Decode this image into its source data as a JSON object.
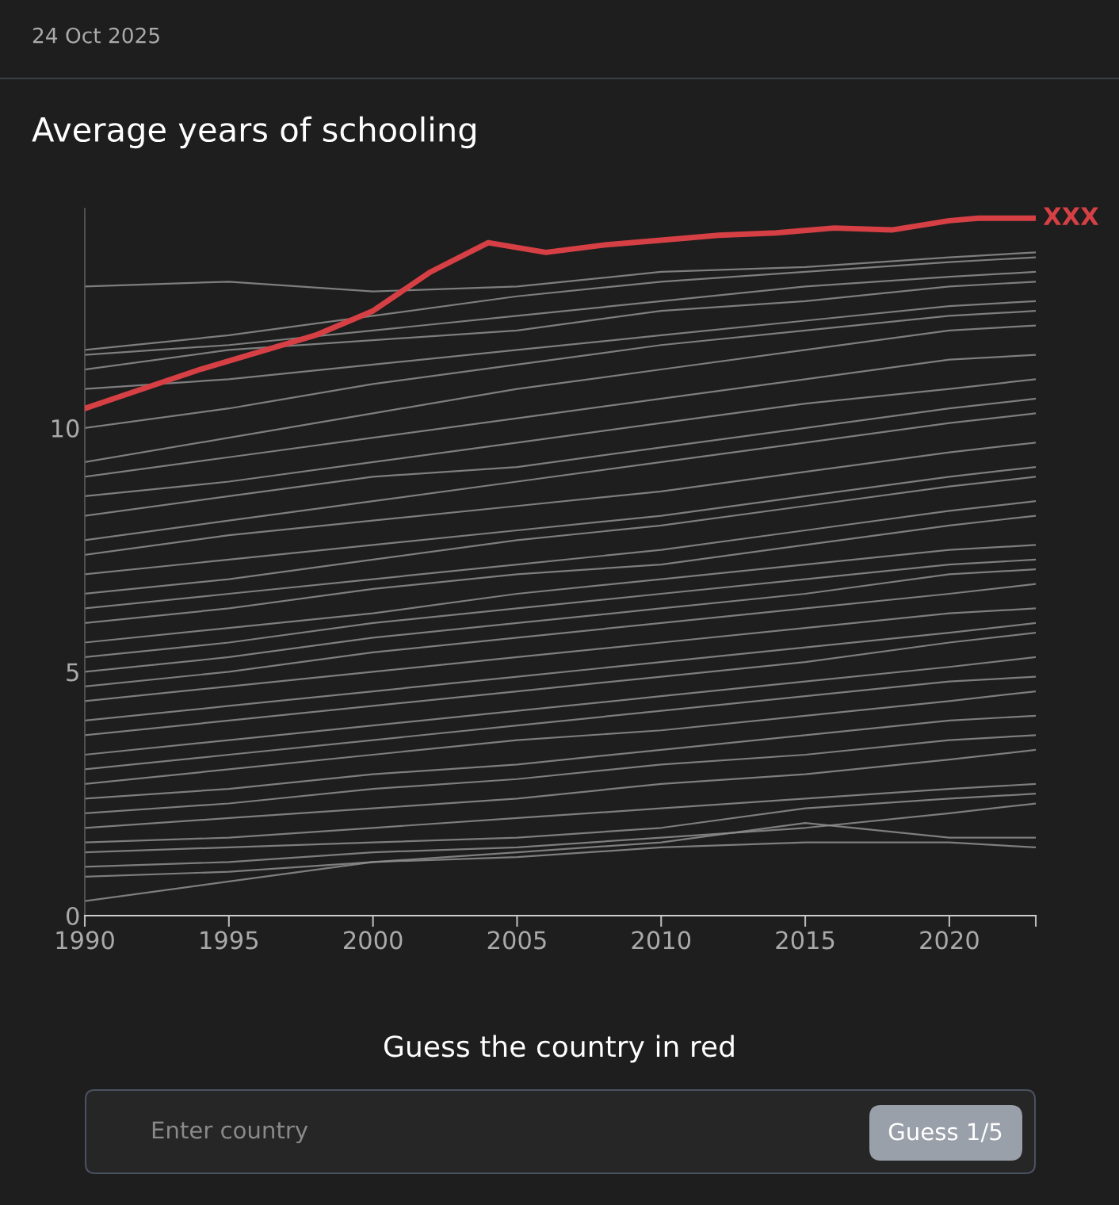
{
  "chart_data": {
    "type": "line",
    "title": "Average years of schooling",
    "x": [
      1990,
      1995,
      2000,
      2005,
      2010,
      2015,
      2020,
      2023
    ],
    "xlim": [
      1990,
      2023
    ],
    "xticks": [
      1990,
      1995,
      2000,
      2005,
      2010,
      2015,
      2020,
      {
        "value": 2023,
        "label": null
      }
    ],
    "ylim": [
      0,
      14.5
    ],
    "yticks": [
      0,
      5,
      10
    ],
    "grid": false,
    "legend": false,
    "marker": "none",
    "line_style": "solid",
    "annotations": [
      "24 Oct 2025",
      "Guess the country in red",
      "Enter country",
      "Guess 1/5"
    ],
    "series": [
      {
        "color": "#8f8f8f",
        "values": [
          12.9,
          13.0,
          12.8,
          12.9,
          13.2,
          13.3,
          13.5,
          13.6
        ]
      },
      {
        "color": "#8f8f8f",
        "values": [
          11.6,
          11.9,
          12.3,
          12.7,
          13.0,
          13.2,
          13.4,
          13.5
        ]
      },
      {
        "color": "#8f8f8f",
        "values": [
          11.5,
          11.7,
          12.0,
          12.3,
          12.6,
          12.9,
          13.1,
          13.2
        ]
      },
      {
        "color": "#8f8f8f",
        "values": [
          11.2,
          11.6,
          11.8,
          12.0,
          12.4,
          12.6,
          12.9,
          13.0
        ]
      },
      {
        "color": "#8f8f8f",
        "values": [
          10.8,
          11.0,
          11.3,
          11.6,
          11.9,
          12.2,
          12.5,
          12.6
        ]
      },
      {
        "color": "#8f8f8f",
        "values": [
          10.0,
          10.4,
          10.9,
          11.3,
          11.7,
          12.0,
          12.3,
          12.4
        ]
      },
      {
        "color": "#8f8f8f",
        "values": [
          9.3,
          9.8,
          10.3,
          10.8,
          11.2,
          11.6,
          12.0,
          12.1
        ]
      },
      {
        "color": "#8f8f8f",
        "values": [
          9.0,
          9.4,
          9.8,
          10.2,
          10.6,
          11.0,
          11.4,
          11.5
        ]
      },
      {
        "color": "#8f8f8f",
        "values": [
          8.6,
          8.9,
          9.3,
          9.7,
          10.1,
          10.5,
          10.8,
          11.0
        ]
      },
      {
        "color": "#8f8f8f",
        "values": [
          8.2,
          8.6,
          9.0,
          9.2,
          9.6,
          10.0,
          10.4,
          10.6
        ]
      },
      {
        "color": "#8f8f8f",
        "values": [
          7.7,
          8.1,
          8.5,
          8.9,
          9.3,
          9.7,
          10.1,
          10.3
        ]
      },
      {
        "color": "#8f8f8f",
        "values": [
          7.4,
          7.8,
          8.1,
          8.4,
          8.7,
          9.1,
          9.5,
          9.7
        ]
      },
      {
        "color": "#8f8f8f",
        "values": [
          7.0,
          7.3,
          7.6,
          7.9,
          8.2,
          8.6,
          9.0,
          9.2
        ]
      },
      {
        "color": "#8f8f8f",
        "values": [
          6.6,
          6.9,
          7.3,
          7.7,
          8.0,
          8.4,
          8.8,
          9.0
        ]
      },
      {
        "color": "#8f8f8f",
        "values": [
          6.3,
          6.6,
          6.9,
          7.2,
          7.5,
          7.9,
          8.3,
          8.5
        ]
      },
      {
        "color": "#8f8f8f",
        "values": [
          6.0,
          6.3,
          6.7,
          7.0,
          7.2,
          7.6,
          8.0,
          8.2
        ]
      },
      {
        "color": "#8f8f8f",
        "values": [
          5.6,
          5.9,
          6.2,
          6.6,
          6.9,
          7.2,
          7.5,
          7.6
        ]
      },
      {
        "color": "#8f8f8f",
        "values": [
          5.3,
          5.6,
          6.0,
          6.3,
          6.6,
          6.9,
          7.2,
          7.3
        ]
      },
      {
        "color": "#8f8f8f",
        "values": [
          5.0,
          5.3,
          5.7,
          6.0,
          6.3,
          6.6,
          7.0,
          7.1
        ]
      },
      {
        "color": "#8f8f8f",
        "values": [
          4.7,
          5.0,
          5.4,
          5.7,
          6.0,
          6.3,
          6.6,
          6.8
        ]
      },
      {
        "color": "#8f8f8f",
        "values": [
          4.4,
          4.7,
          5.0,
          5.3,
          5.6,
          5.9,
          6.2,
          6.3
        ]
      },
      {
        "color": "#8f8f8f",
        "values": [
          4.0,
          4.3,
          4.6,
          4.9,
          5.2,
          5.5,
          5.8,
          6.0
        ]
      },
      {
        "color": "#8f8f8f",
        "values": [
          3.7,
          4.0,
          4.3,
          4.6,
          4.9,
          5.2,
          5.6,
          5.8
        ]
      },
      {
        "color": "#8f8f8f",
        "values": [
          3.3,
          3.6,
          3.9,
          4.2,
          4.5,
          4.8,
          5.1,
          5.3
        ]
      },
      {
        "color": "#8f8f8f",
        "values": [
          3.0,
          3.3,
          3.6,
          3.9,
          4.2,
          4.5,
          4.8,
          4.9
        ]
      },
      {
        "color": "#8f8f8f",
        "values": [
          2.7,
          3.0,
          3.3,
          3.6,
          3.8,
          4.1,
          4.4,
          4.6
        ]
      },
      {
        "color": "#8f8f8f",
        "values": [
          2.4,
          2.6,
          2.9,
          3.1,
          3.4,
          3.7,
          4.0,
          4.1
        ]
      },
      {
        "color": "#8f8f8f",
        "values": [
          2.1,
          2.3,
          2.6,
          2.8,
          3.1,
          3.3,
          3.6,
          3.7
        ]
      },
      {
        "color": "#8f8f8f",
        "values": [
          1.8,
          2.0,
          2.2,
          2.4,
          2.7,
          2.9,
          3.2,
          3.4
        ]
      },
      {
        "color": "#8f8f8f",
        "values": [
          1.5,
          1.6,
          1.8,
          2.0,
          2.2,
          2.4,
          2.6,
          2.7
        ]
      },
      {
        "color": "#8f8f8f",
        "values": [
          1.3,
          1.4,
          1.5,
          1.6,
          1.8,
          2.2,
          2.4,
          2.5
        ]
      },
      {
        "color": "#8f8f8f",
        "values": [
          1.0,
          1.1,
          1.3,
          1.4,
          1.6,
          1.8,
          2.1,
          2.3
        ]
      },
      {
        "color": "#8f8f8f",
        "values": [
          0.8,
          0.9,
          1.1,
          1.2,
          1.4,
          1.5,
          1.5,
          1.4
        ]
      },
      {
        "color": "#8f8f8f",
        "values": [
          0.3,
          0.7,
          1.1,
          1.3,
          1.5,
          1.9,
          1.6,
          1.6
        ]
      },
      {
        "name": "XXX",
        "color": "#d64045",
        "x": [
          1990,
          1994,
          1998,
          2000,
          2002,
          2004,
          2006,
          2008,
          2010,
          2012,
          2014,
          2016,
          2018,
          2020,
          2021,
          2023
        ],
        "values": [
          10.4,
          11.2,
          11.9,
          12.4,
          13.2,
          13.8,
          13.6,
          13.75,
          13.85,
          13.95,
          14.0,
          14.1,
          14.06,
          14.25,
          14.3,
          14.3
        ]
      }
    ]
  }
}
